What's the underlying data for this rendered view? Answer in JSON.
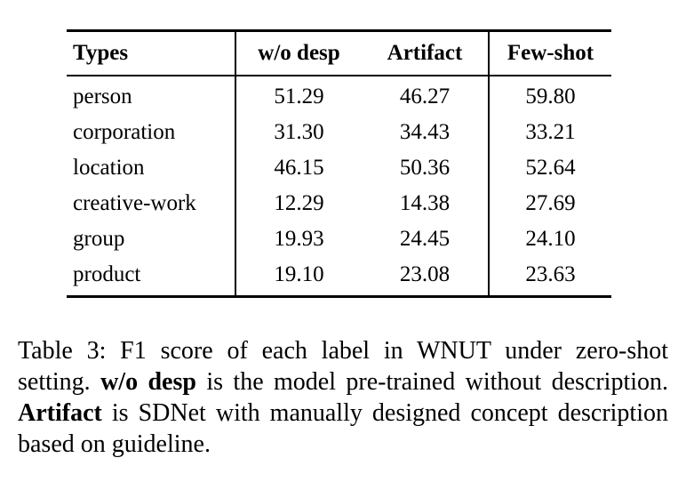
{
  "table": {
    "columns": [
      "Types",
      "w/o desp",
      "Artifact",
      "Few-shot"
    ],
    "rows": [
      {
        "type": "person",
        "wo_desp": "51.29",
        "artifact": "46.27",
        "few_shot": "59.80"
      },
      {
        "type": "corporation",
        "wo_desp": "31.30",
        "artifact": "34.43",
        "few_shot": "33.21"
      },
      {
        "type": "location",
        "wo_desp": "46.15",
        "artifact": "50.36",
        "few_shot": "52.64"
      },
      {
        "type": "creative-work",
        "wo_desp": "12.29",
        "artifact": "14.38",
        "few_shot": "27.69"
      },
      {
        "type": "group",
        "wo_desp": "19.93",
        "artifact": "24.45",
        "few_shot": "24.10"
      },
      {
        "type": "product",
        "wo_desp": "19.10",
        "artifact": "23.08",
        "few_shot": "23.63"
      }
    ]
  },
  "caption": {
    "segments": [
      {
        "text": "Table 3: F1 score of each label in WNUT under zero-shot setting. "
      },
      {
        "text": "w/o desp"
      },
      {
        "text": " is the model pre-trained without description. "
      },
      {
        "text": "Artifact"
      },
      {
        "text": " is SDNet with manually designed concept description based on guideline."
      }
    ]
  }
}
